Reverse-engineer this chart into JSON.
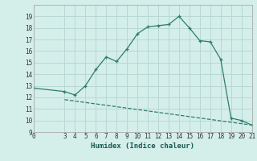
{
  "xlabel": "Humidex (Indice chaleur)",
  "line1_x": [
    0,
    3,
    4,
    5,
    6,
    7,
    8,
    9,
    10,
    11,
    12,
    13,
    14,
    15,
    16,
    17,
    18,
    19,
    20,
    21
  ],
  "line1_y": [
    12.8,
    12.5,
    12.2,
    13.0,
    14.4,
    15.5,
    15.1,
    16.2,
    17.5,
    18.1,
    18.2,
    18.3,
    19.0,
    18.0,
    16.9,
    16.8,
    15.3,
    10.2,
    10.0,
    9.6
  ],
  "line2_x": [
    3,
    21
  ],
  "line2_y": [
    11.8,
    9.6
  ],
  "line_color": "#2d7d6e",
  "bg_color": "#d4eeea",
  "grid_color": "#b8d8d4",
  "ylim": [
    9,
    20
  ],
  "xlim": [
    0,
    21
  ],
  "yticks": [
    9,
    10,
    11,
    12,
    13,
    14,
    15,
    16,
    17,
    18,
    19
  ],
  "xticks": [
    0,
    3,
    4,
    5,
    6,
    7,
    8,
    9,
    10,
    11,
    12,
    13,
    14,
    15,
    16,
    17,
    18,
    19,
    20,
    21
  ]
}
